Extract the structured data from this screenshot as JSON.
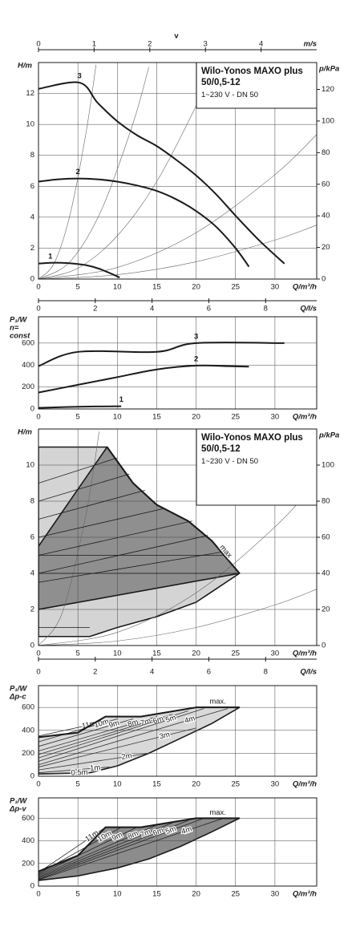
{
  "chart_data": [
    {
      "type": "line",
      "title": "Wilo-Yonos MAXO plus 50/0,5-12",
      "subtitle": "1~230 V - DN 50",
      "x_label": "Q/m³/h",
      "xlim": [
        0,
        35.3
      ],
      "xticks": [
        0,
        5,
        10,
        15,
        20,
        25,
        30
      ],
      "y_label": "H/m",
      "ylim": [
        0,
        14
      ],
      "yticks": [
        0,
        2,
        4,
        6,
        8,
        10,
        12
      ],
      "y2_label": "p/kPa",
      "y2lim": [
        0,
        137
      ],
      "y2ticks": [
        0,
        20,
        40,
        60,
        80,
        100,
        120
      ],
      "x2_symbol": "v",
      "x2_label": "m/s",
      "x2lim": [
        0,
        5
      ],
      "x2ticks": [
        0,
        1,
        2,
        3,
        4
      ],
      "grid": true,
      "series": [
        {
          "name": "1",
          "color": "#1a1a1a",
          "x": [
            0,
            1.5,
            3,
            4.5,
            6,
            7.5,
            9,
            10.3
          ],
          "values": [
            1.0,
            1.05,
            1.05,
            1.0,
            0.9,
            0.7,
            0.4,
            0.1
          ]
        },
        {
          "name": "2",
          "color": "#1a1a1a",
          "x": [
            0,
            2.5,
            5,
            7.5,
            10,
            12.5,
            15,
            17.5,
            20,
            22.5,
            25,
            26.7
          ],
          "values": [
            6.3,
            6.45,
            6.5,
            6.45,
            6.3,
            6.05,
            5.7,
            5.15,
            4.4,
            3.4,
            2.0,
            0.8
          ]
        },
        {
          "name": "3",
          "color": "#1a1a1a",
          "x": [
            0,
            5.2,
            7.5,
            10,
            12.5,
            15,
            17.5,
            20,
            22.5,
            25,
            28,
            31.2
          ],
          "values": [
            12.3,
            12.7,
            11.4,
            10.2,
            9.3,
            8.6,
            7.7,
            6.7,
            5.5,
            4.1,
            2.5,
            1.0
          ]
        }
      ],
      "system_curves": [
        {
          "x": [
            0,
            2,
            4,
            6,
            7.3
          ],
          "values": [
            0,
            1.04,
            4.16,
            9.36,
            13.86
          ]
        },
        {
          "x": [
            0,
            4,
            8,
            12,
            14
          ],
          "values": [
            0,
            1.12,
            4.48,
            10.08,
            13.72
          ]
        },
        {
          "x": [
            0,
            5,
            10,
            15,
            20,
            22
          ],
          "values": [
            0,
            0.7,
            2.8,
            6.3,
            11.2,
            13.55
          ]
        },
        {
          "x": [
            0,
            10,
            20,
            30,
            35.3
          ],
          "values": [
            0,
            0.75,
            3,
            6.75,
            9.35
          ]
        },
        {
          "x": [
            0,
            10,
            20,
            30,
            35.3
          ],
          "values": [
            0,
            0.28,
            1.12,
            2.52,
            3.49
          ]
        }
      ]
    },
    {
      "type": "line",
      "x_label": "Q/m³/h",
      "xlim": [
        0,
        35.3
      ],
      "xticks": [
        0,
        5,
        10,
        15,
        20,
        25,
        30
      ],
      "y_label": [
        "P₁/W",
        "n=",
        "const"
      ],
      "ylim": [
        0,
        840
      ],
      "yticks": [
        0,
        200,
        400,
        600
      ],
      "x2_label": "Q/l/s",
      "x2lim": [
        0,
        9.8
      ],
      "x2ticks": [
        0,
        2,
        4,
        6,
        8
      ],
      "grid": true,
      "series": [
        {
          "name": "1",
          "color": "#1a1a1a",
          "x": [
            0,
            5,
            10.5
          ],
          "values": [
            10,
            20,
            25
          ]
        },
        {
          "name": "2",
          "color": "#1a1a1a",
          "x": [
            0,
            5,
            10,
            15,
            20,
            24,
            26.7
          ],
          "values": [
            150,
            220,
            290,
            360,
            395,
            390,
            385
          ]
        },
        {
          "name": "3",
          "color": "#1a1a1a",
          "x": [
            0,
            5,
            15,
            20,
            31.2
          ],
          "values": [
            390,
            520,
            520,
            600,
            600
          ]
        }
      ]
    },
    {
      "type": "line",
      "title": "Wilo-Yonos MAXO plus 50/0,5-12",
      "subtitle": "1~230 V - DN 50",
      "x_label": "Q/m³/h",
      "xlim": [
        0,
        35.3
      ],
      "xticks": [
        0,
        5,
        10,
        15,
        20,
        25,
        30
      ],
      "y_label": "H/m",
      "ylim": [
        0,
        12
      ],
      "yticks": [
        0,
        2,
        4,
        6,
        8,
        10
      ],
      "y2_label": "p/kPa",
      "y2lim": [
        0,
        120
      ],
      "y2ticks": [
        0,
        20,
        40,
        60,
        80,
        100
      ],
      "x2_label": "Q/l/s",
      "x2lim": [
        0,
        9.8
      ],
      "x2ticks": [
        0,
        2,
        4,
        6,
        8
      ],
      "grid": true,
      "areas": [
        {
          "color": "#d4d4d4",
          "x": [
            0,
            8.7,
            12,
            15,
            19,
            22,
            25.5,
            20,
            15,
            10,
            6.5,
            0
          ],
          "values": [
            11,
            11,
            9,
            7.8,
            6.9,
            5.8,
            4,
            2.4,
            1.6,
            1.0,
            0.5,
            0.5
          ]
        },
        {
          "color": "#8f8f8f",
          "x": [
            0,
            8.7,
            12,
            15,
            19,
            22,
            25.5,
            0
          ],
          "values": [
            5.5,
            11,
            9,
            7.8,
            6.9,
            5.8,
            4,
            2
          ]
        }
      ],
      "control_lines": [
        {
          "x": [
            0,
            23.5
          ],
          "values": [
            3.5,
            5.2
          ]
        },
        {
          "x": [
            0,
            21.5
          ],
          "values": [
            4.0,
            6.1
          ]
        },
        {
          "x": [
            0,
            19.5
          ],
          "values": [
            5.0,
            6.9
          ]
        },
        {
          "x": [
            0,
            16
          ],
          "values": [
            6.0,
            7.6
          ]
        },
        {
          "x": [
            0,
            13.5
          ],
          "values": [
            7.0,
            8.6
          ]
        },
        {
          "x": [
            0,
            11.5
          ],
          "values": [
            8.0,
            9.5
          ]
        },
        {
          "x": [
            0,
            10
          ],
          "values": [
            9.0,
            10.4
          ]
        },
        {
          "x": [
            0,
            25.5
          ],
          "values": [
            4,
            4
          ]
        },
        {
          "x": [
            0,
            23.8
          ],
          "values": [
            5,
            5
          ]
        },
        {
          "x": [
            0,
            6.5
          ],
          "values": [
            1,
            1
          ]
        }
      ],
      "series": [
        {
          "name": "max",
          "color": "#1a1a1a",
          "x": [
            8.7,
            12,
            15,
            19,
            22,
            25.5
          ],
          "values": [
            11,
            9,
            7.8,
            6.9,
            5.8,
            4
          ]
        }
      ],
      "system_curves": [
        {
          "x": [
            0,
            3,
            6,
            7.7
          ],
          "values": [
            0,
            1.8,
            7.2,
            11.86
          ]
        },
        {
          "x": [
            0,
            10,
            20,
            30,
            35.3
          ],
          "values": [
            0,
            0.73,
            2.92,
            6.57,
            9.1
          ]
        },
        {
          "x": [
            0,
            10,
            20,
            30,
            35.3
          ],
          "values": [
            0,
            0.25,
            1,
            2.25,
            3.12
          ]
        }
      ]
    },
    {
      "type": "line",
      "x_label": "Q/m³/h",
      "xlim": [
        0,
        35.3
      ],
      "xticks": [
        0,
        5,
        10,
        15,
        20,
        25,
        30
      ],
      "y_label": [
        "P₁/W",
        "Δp-c"
      ],
      "ylim": [
        0,
        790
      ],
      "yticks": [
        0,
        200,
        400,
        600
      ],
      "grid": true,
      "areas": [
        {
          "color": "#d9d9d9",
          "x": [
            0,
            5,
            8.5,
            13,
            20,
            25.5,
            22,
            18,
            14,
            10,
            6.5,
            0
          ],
          "values": [
            340,
            380,
            520,
            520,
            600,
            600,
            460,
            330,
            200,
            90,
            30,
            20
          ]
        }
      ],
      "series": [
        {
          "name": "11m",
          "color": "#333333",
          "x": [
            0,
            8
          ],
          "values": [
            350,
            470
          ]
        },
        {
          "name": "10m",
          "color": "#333333",
          "x": [
            0,
            10
          ],
          "values": [
            300,
            500
          ]
        },
        {
          "name": "9m",
          "color": "#333333",
          "x": [
            0,
            12
          ],
          "values": [
            260,
            500
          ]
        },
        {
          "name": "8m",
          "color": "#333333",
          "x": [
            0,
            15
          ],
          "values": [
            220,
            520
          ]
        },
        {
          "name": "7m",
          "color": "#333333",
          "x": [
            0,
            17
          ],
          "values": [
            190,
            540
          ]
        },
        {
          "name": "6m",
          "color": "#333333",
          "x": [
            0,
            19
          ],
          "values": [
            160,
            570
          ]
        },
        {
          "name": "5m",
          "color": "#333333",
          "x": [
            0,
            21
          ],
          "values": [
            130,
            590
          ]
        },
        {
          "name": "4m",
          "color": "#333333",
          "x": [
            0,
            24
          ],
          "values": [
            100,
            590
          ]
        },
        {
          "name": "3m",
          "color": "#333333",
          "x": [
            0,
            20
          ],
          "values": [
            80,
            420
          ]
        },
        {
          "name": "2m",
          "color": "#333333",
          "x": [
            0,
            14
          ],
          "values": [
            55,
            200
          ]
        },
        {
          "name": "1m",
          "color": "#333333",
          "x": [
            0,
            9
          ],
          "values": [
            30,
            80
          ]
        },
        {
          "name": "0.5m",
          "color": "#333333",
          "x": [
            0,
            6.5
          ],
          "values": [
            22,
            32
          ]
        },
        {
          "name": "max.",
          "color": "#1a1a1a",
          "x": [
            0,
            5,
            8.5,
            13,
            20,
            25.5
          ],
          "values": [
            340,
            380,
            520,
            520,
            600,
            600
          ]
        }
      ]
    },
    {
      "type": "line",
      "x_label": "Q/m³/h",
      "xlim": [
        0,
        35.3
      ],
      "xticks": [
        0,
        5,
        10,
        15,
        20,
        25,
        30
      ],
      "y_label": [
        "P₁/W",
        "Δp-v"
      ],
      "ylim": [
        0,
        780
      ],
      "yticks": [
        0,
        200,
        400,
        600
      ],
      "grid": true,
      "areas": [
        {
          "color": "#8c8c8c",
          "x": [
            0,
            5,
            8.5,
            13,
            20,
            25.5,
            22,
            18,
            14,
            10,
            5,
            0
          ],
          "values": [
            130,
            270,
            520,
            520,
            600,
            600,
            480,
            350,
            240,
            160,
            90,
            50
          ]
        }
      ],
      "series": [
        {
          "name": "11m",
          "color": "#222222",
          "x": [
            0,
            8.5
          ],
          "values": [
            120,
            520
          ]
        },
        {
          "name": "10m",
          "color": "#222222",
          "x": [
            0,
            10.5
          ],
          "values": [
            110,
            520
          ]
        },
        {
          "name": "9m",
          "color": "#222222",
          "x": [
            0,
            12.5
          ],
          "values": [
            100,
            520
          ]
        },
        {
          "name": "8m",
          "color": "#222222",
          "x": [
            0,
            15
          ],
          "values": [
            90,
            540
          ]
        },
        {
          "name": "7m",
          "color": "#222222",
          "x": [
            0,
            17
          ],
          "values": [
            80,
            560
          ]
        },
        {
          "name": "6m",
          "color": "#222222",
          "x": [
            0,
            19
          ],
          "values": [
            70,
            580
          ]
        },
        {
          "name": "5m",
          "color": "#222222",
          "x": [
            0,
            21
          ],
          "values": [
            60,
            600
          ]
        },
        {
          "name": "4m",
          "color": "#222222",
          "x": [
            0,
            23.5
          ],
          "values": [
            55,
            600
          ]
        },
        {
          "name": "max.",
          "color": "#1a1a1a",
          "x": [
            0,
            5,
            8.5,
            13,
            20,
            25.5
          ],
          "values": [
            130,
            270,
            520,
            520,
            600,
            600
          ]
        }
      ]
    }
  ]
}
